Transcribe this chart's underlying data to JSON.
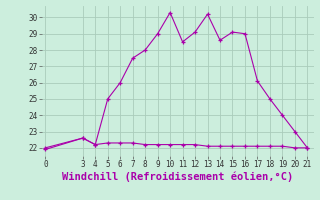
{
  "background_color": "#cceedd",
  "grid_color": "#aaccbb",
  "line_color": "#aa00aa",
  "x_line1": [
    0,
    3,
    4,
    5,
    6,
    7,
    8,
    9,
    10,
    11,
    12,
    13,
    14,
    15,
    16,
    17,
    18,
    19,
    20,
    21
  ],
  "y_line1": [
    22.0,
    22.6,
    22.2,
    22.3,
    22.3,
    22.3,
    22.2,
    22.2,
    22.2,
    22.2,
    22.2,
    22.1,
    22.1,
    22.1,
    22.1,
    22.1,
    22.1,
    22.1,
    22.0,
    22.0
  ],
  "x_line2": [
    0,
    3,
    4,
    5,
    6,
    7,
    8,
    9,
    10,
    11,
    12,
    13,
    14,
    15,
    16,
    17,
    18,
    19,
    20,
    21
  ],
  "y_line2": [
    21.9,
    22.6,
    22.2,
    25.0,
    26.0,
    27.5,
    28.0,
    29.0,
    30.3,
    28.5,
    29.1,
    30.2,
    28.6,
    29.1,
    29.0,
    26.1,
    25.0,
    24.0,
    23.0,
    22.0
  ],
  "ylim": [
    21.5,
    30.7
  ],
  "yticks": [
    22,
    23,
    24,
    25,
    26,
    27,
    28,
    29,
    30
  ],
  "xlim": [
    -0.3,
    21.5
  ],
  "xticks": [
    0,
    3,
    4,
    5,
    6,
    7,
    8,
    9,
    10,
    11,
    12,
    13,
    14,
    15,
    16,
    17,
    18,
    19,
    20,
    21
  ],
  "xlabel": "Windchill (Refroidissement éolien,°C)",
  "tick_fontsize": 5.5,
  "xlabel_fontsize": 7.5
}
